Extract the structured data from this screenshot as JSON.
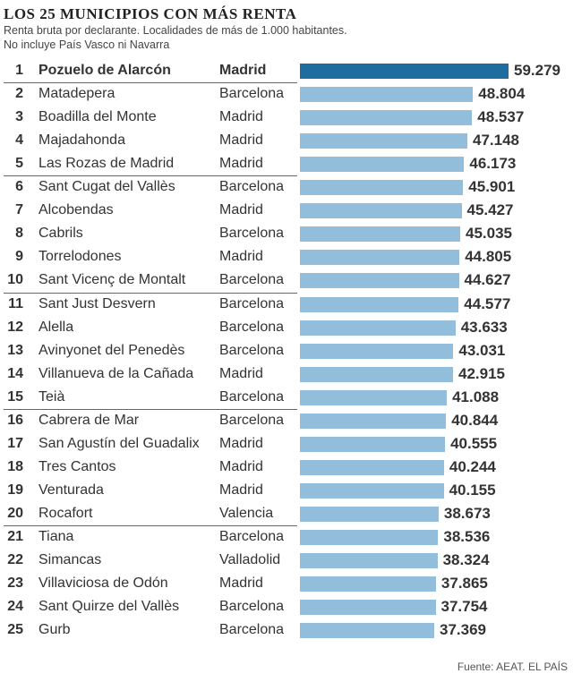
{
  "header": {
    "title": "LOS 25 MUNICIPIOS CON MÁS RENTA",
    "subtitle_line1": "Renta bruta por declarante. Localidades de más de 1.000 habitantes.",
    "subtitle_line2": "No incluye País Vasco ni Navarra"
  },
  "source": "Fuente: AEAT.      EL PAÍS",
  "colors": {
    "highlight_bar": "#1f6c9e",
    "bar": "#92bddb"
  },
  "chart_data": {
    "type": "bar",
    "orientation": "horizontal",
    "title": "LOS 25 MUNICIPIOS CON MÁS RENTA",
    "subtitle": "Renta bruta por declarante. Localidades de más de 1.000 habitantes.",
    "rows": [
      {
        "rank": "1",
        "municipio": "Pozuelo de Alarcón",
        "provincia": "Madrid",
        "value": 59279,
        "label": "59.279"
      },
      {
        "rank": "2",
        "municipio": "Matadepera",
        "provincia": "Barcelona",
        "value": 48804,
        "label": "48.804"
      },
      {
        "rank": "3",
        "municipio": "Boadilla del Monte",
        "provincia": "Madrid",
        "value": 48537,
        "label": "48.537"
      },
      {
        "rank": "4",
        "municipio": "Majadahonda",
        "provincia": "Madrid",
        "value": 47148,
        "label": "47.148"
      },
      {
        "rank": "5",
        "municipio": "Las Rozas de Madrid",
        "provincia": "Madrid",
        "value": 46173,
        "label": "46.173"
      },
      {
        "rank": "6",
        "municipio": "Sant Cugat del Vallès",
        "provincia": "Barcelona",
        "value": 45901,
        "label": "45.901"
      },
      {
        "rank": "7",
        "municipio": "Alcobendas",
        "provincia": "Madrid",
        "value": 45427,
        "label": "45.427"
      },
      {
        "rank": "8",
        "municipio": "Cabrils",
        "provincia": "Barcelona",
        "value": 45035,
        "label": "45.035"
      },
      {
        "rank": "9",
        "municipio": "Torrelodones",
        "provincia": "Madrid",
        "value": 44805,
        "label": "44.805"
      },
      {
        "rank": "10",
        "municipio": "Sant Vicenç de Montalt",
        "provincia": "Barcelona",
        "value": 44627,
        "label": "44.627"
      },
      {
        "rank": "11",
        "municipio": "Sant Just Desvern",
        "provincia": "Barcelona",
        "value": 44577,
        "label": "44.577"
      },
      {
        "rank": "12",
        "municipio": "Alella",
        "provincia": "Barcelona",
        "value": 43633,
        "label": "43.633"
      },
      {
        "rank": "13",
        "municipio": "Avinyonet del Penedès",
        "provincia": "Barcelona",
        "value": 43031,
        "label": "43.031"
      },
      {
        "rank": "14",
        "municipio": "Villanueva de la Cañada",
        "provincia": "Madrid",
        "value": 42915,
        "label": "42.915"
      },
      {
        "rank": "15",
        "municipio": "Teià",
        "provincia": "Barcelona",
        "value": 41088,
        "label": "41.088"
      },
      {
        "rank": "16",
        "municipio": "Cabrera de Mar",
        "provincia": "Barcelona",
        "value": 40844,
        "label": "40.844"
      },
      {
        "rank": "17",
        "municipio": "San Agustín del Guadalix",
        "provincia": "Madrid",
        "value": 40555,
        "label": "40.555"
      },
      {
        "rank": "18",
        "municipio": "Tres Cantos",
        "provincia": "Madrid",
        "value": 40244,
        "label": "40.244"
      },
      {
        "rank": "19",
        "municipio": "Venturada",
        "provincia": "Madrid",
        "value": 40155,
        "label": "40.155"
      },
      {
        "rank": "20",
        "municipio": "Rocafort",
        "provincia": "Valencia",
        "value": 38673,
        "label": "38.673"
      },
      {
        "rank": "21",
        "municipio": "Tiana",
        "provincia": "Barcelona",
        "value": 38536,
        "label": "38.536"
      },
      {
        "rank": "22",
        "municipio": "Simancas",
        "provincia": "Valladolid",
        "value": 38324,
        "label": "38.324"
      },
      {
        "rank": "23",
        "municipio": "Villaviciosa de Odón",
        "provincia": "Madrid",
        "value": 37865,
        "label": "37.865"
      },
      {
        "rank": "24",
        "municipio": "Sant Quirze del Vallès",
        "provincia": "Barcelona",
        "value": 37754,
        "label": "37.754"
      },
      {
        "rank": "25",
        "municipio": "Gurb",
        "provincia": "Barcelona",
        "value": 37369,
        "label": "37.369"
      }
    ],
    "xlim": [
      0,
      59279
    ],
    "grid": false,
    "legend": "none"
  }
}
